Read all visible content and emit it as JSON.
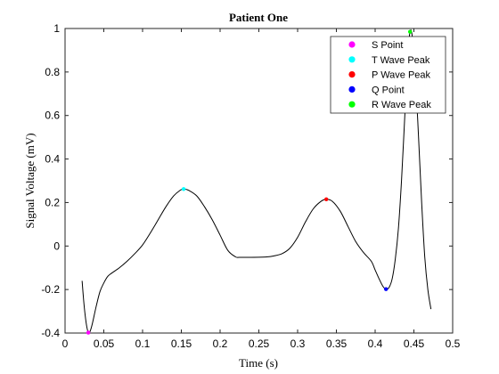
{
  "chart_data": {
    "type": "line",
    "title": "Patient One",
    "xlabel": "Time (s)",
    "ylabel": "Signal Voltage (mV)",
    "xlim": [
      0,
      0.5
    ],
    "ylim": [
      -0.4,
      1
    ],
    "xticks": [
      "0",
      "0.05",
      "0.1",
      "0.15",
      "0.2",
      "0.25",
      "0.3",
      "0.35",
      "0.4",
      "0.45",
      "0.5"
    ],
    "yticks": [
      "-0.4",
      "-0.2",
      "0",
      "0.2",
      "0.4",
      "0.6",
      "0.8",
      "1"
    ],
    "grid": false,
    "legend_position": "top-right",
    "signal": {
      "color": "#000000",
      "points": [
        [
          0.022,
          -0.16
        ],
        [
          0.024,
          -0.25
        ],
        [
          0.026,
          -0.32
        ],
        [
          0.028,
          -0.37
        ],
        [
          0.03,
          -0.398
        ],
        [
          0.032,
          -0.395
        ],
        [
          0.035,
          -0.36
        ],
        [
          0.04,
          -0.28
        ],
        [
          0.045,
          -0.21
        ],
        [
          0.05,
          -0.17
        ],
        [
          0.055,
          -0.14
        ],
        [
          0.06,
          -0.125
        ],
        [
          0.07,
          -0.1
        ],
        [
          0.08,
          -0.07
        ],
        [
          0.09,
          -0.035
        ],
        [
          0.1,
          0.005
        ],
        [
          0.11,
          0.06
        ],
        [
          0.12,
          0.12
        ],
        [
          0.13,
          0.18
        ],
        [
          0.14,
          0.23
        ],
        [
          0.148,
          0.255
        ],
        [
          0.153,
          0.262
        ],
        [
          0.16,
          0.255
        ],
        [
          0.17,
          0.23
        ],
        [
          0.18,
          0.18
        ],
        [
          0.19,
          0.12
        ],
        [
          0.2,
          0.05
        ],
        [
          0.21,
          -0.02
        ],
        [
          0.22,
          -0.05
        ],
        [
          0.225,
          -0.052
        ],
        [
          0.24,
          -0.052
        ],
        [
          0.26,
          -0.05
        ],
        [
          0.27,
          -0.045
        ],
        [
          0.28,
          -0.035
        ],
        [
          0.29,
          -0.01
        ],
        [
          0.3,
          0.04
        ],
        [
          0.31,
          0.11
        ],
        [
          0.32,
          0.17
        ],
        [
          0.33,
          0.205
        ],
        [
          0.337,
          0.215
        ],
        [
          0.345,
          0.205
        ],
        [
          0.355,
          0.16
        ],
        [
          0.365,
          0.09
        ],
        [
          0.375,
          0.02
        ],
        [
          0.385,
          -0.03
        ],
        [
          0.395,
          -0.07
        ],
        [
          0.4,
          -0.11
        ],
        [
          0.405,
          -0.15
        ],
        [
          0.41,
          -0.185
        ],
        [
          0.414,
          -0.198
        ],
        [
          0.418,
          -0.19
        ],
        [
          0.422,
          -0.15
        ],
        [
          0.426,
          -0.06
        ],
        [
          0.43,
          0.08
        ],
        [
          0.434,
          0.3
        ],
        [
          0.438,
          0.58
        ],
        [
          0.442,
          0.86
        ],
        [
          0.445,
          0.985
        ],
        [
          0.448,
          0.96
        ],
        [
          0.452,
          0.78
        ],
        [
          0.456,
          0.5
        ],
        [
          0.46,
          0.2
        ],
        [
          0.464,
          -0.05
        ],
        [
          0.468,
          -0.2
        ],
        [
          0.472,
          -0.29
        ]
      ]
    },
    "series": [
      {
        "name": "S Point",
        "color": "#ff00ff",
        "points": [
          [
            0.03,
            -0.398
          ]
        ]
      },
      {
        "name": "T Wave Peak",
        "color": "#00ffff",
        "points": [
          [
            0.153,
            0.262
          ]
        ]
      },
      {
        "name": "P Wave Peak",
        "color": "#ff0000",
        "points": [
          [
            0.337,
            0.215
          ]
        ]
      },
      {
        "name": "Q Point",
        "color": "#0000ff",
        "points": [
          [
            0.414,
            -0.198
          ]
        ]
      },
      {
        "name": "R Wave Peak",
        "color": "#00ff00",
        "points": [
          [
            0.445,
            0.985
          ]
        ]
      }
    ]
  }
}
